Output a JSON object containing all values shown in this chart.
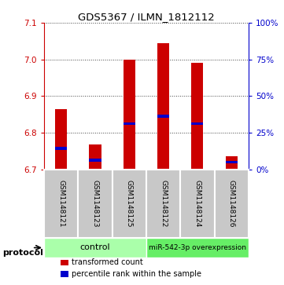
{
  "title": "GDS5367 / ILMN_1812112",
  "samples": [
    "GSM1148121",
    "GSM1148123",
    "GSM1148125",
    "GSM1148122",
    "GSM1148124",
    "GSM1148126"
  ],
  "bar_bottoms": [
    6.7,
    6.7,
    6.7,
    6.7,
    6.7,
    6.7
  ],
  "bar_tops": [
    6.865,
    6.768,
    7.0,
    7.045,
    6.99,
    6.735
  ],
  "blue_markers": [
    6.757,
    6.725,
    6.825,
    6.845,
    6.825,
    6.72
  ],
  "ylim_left": [
    6.7,
    7.1
  ],
  "ylim_right": [
    0,
    100
  ],
  "yticks_left": [
    6.7,
    6.8,
    6.9,
    7.0,
    7.1
  ],
  "yticks_right": [
    0,
    25,
    50,
    75,
    100
  ],
  "ytick_labels_right": [
    "0%",
    "25%",
    "50%",
    "75%",
    "100%"
  ],
  "bar_color": "#cc0000",
  "blue_color": "#0000cc",
  "background_plot": "#ffffff",
  "background_sample": "#c8c8c8",
  "control_color": "#aaffaa",
  "overexp_color": "#66ee66",
  "control_label": "control",
  "overexp_label": "miR-542-3p overexpression",
  "protocol_label": "protocol",
  "legend_red": "transformed count",
  "legend_blue": "percentile rank within the sample",
  "grid_color": "#404040",
  "bar_width": 0.35,
  "left_tick_color": "#cc0000",
  "right_tick_color": "#0000cc",
  "n_samples": 6
}
